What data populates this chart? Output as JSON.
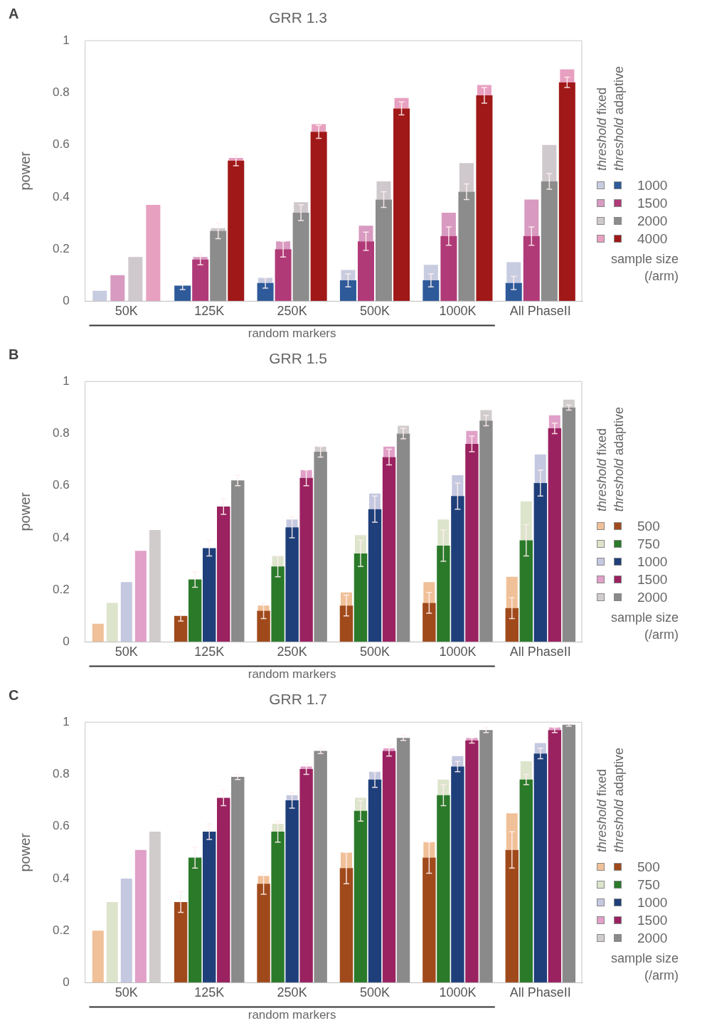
{
  "chart_data": [
    {
      "type": "bar",
      "title": "GRR 1.3",
      "ylabel": "power",
      "legend_title": "sample size (/arm)",
      "annotations": [
        "A",
        "random markers",
        "threshold fixed",
        "threshold adaptive"
      ],
      "categories": [
        "50K",
        "125K",
        "250K",
        "500K",
        "1000K",
        "All PhaseII"
      ],
      "ylim": [
        0,
        1
      ],
      "yticks": [
        0,
        0.2,
        0.4,
        0.6,
        0.8,
        1
      ],
      "grid": false,
      "legend": "right",
      "series": [
        {
          "name": "1000",
          "color": "#2e5a9a",
          "values": [
            null,
            0.06,
            0.07,
            0.08,
            0.08,
            0.07
          ],
          "errors": [
            null,
            0.015,
            0.02,
            0.025,
            0.025,
            0.025
          ]
        },
        {
          "color": "#c8cce0",
          "values": [
            0.04,
            null,
            0.02,
            0.04,
            0.06,
            0.08
          ],
          "base": [
            0,
            null,
            0.07,
            0.08,
            0.08,
            0.07
          ]
        },
        {
          "name": "1500",
          "color": "#b03a78",
          "values": [
            null,
            0.16,
            0.2,
            0.23,
            0.25,
            0.25
          ],
          "errors": [
            null,
            0.02,
            0.03,
            0.035,
            0.035,
            0.035
          ]
        },
        {
          "color": "#d89ac0",
          "values": [
            0.1,
            0.01,
            0.03,
            0.06,
            0.09,
            0.14
          ],
          "base": [
            0,
            0.16,
            0.2,
            0.23,
            0.25,
            0.25
          ]
        },
        {
          "name": "2000",
          "color": "#8c8c8c",
          "values": [
            null,
            0.27,
            0.34,
            0.39,
            0.42,
            0.46
          ],
          "errors": [
            null,
            0.03,
            0.03,
            0.03,
            0.03,
            0.03
          ]
        },
        {
          "color": "#cfc8cc",
          "values": [
            0.17,
            0.01,
            0.04,
            0.07,
            0.11,
            0.14
          ],
          "base": [
            0,
            0.27,
            0.34,
            0.39,
            0.42,
            0.46
          ]
        },
        {
          "name": "4000",
          "color": "#a01818",
          "values": [
            null,
            0.54,
            0.65,
            0.74,
            0.79,
            0.84
          ],
          "errors": [
            null,
            0.02,
            0.025,
            0.025,
            0.03,
            0.02
          ]
        },
        {
          "color": "#e8a0c0",
          "values": [
            0.37,
            0.01,
            0.03,
            0.04,
            0.04,
            0.05
          ],
          "base": [
            0,
            0.54,
            0.65,
            0.74,
            0.79,
            0.84
          ]
        }
      ]
    },
    {
      "type": "bar",
      "title": "GRR 1.5",
      "ylabel": "power",
      "legend_title": "sample size (/arm)",
      "annotations": [
        "B",
        "random markers",
        "threshold fixed",
        "threshold adaptive"
      ],
      "categories": [
        "50K",
        "125K",
        "250K",
        "500K",
        "1000K",
        "All PhaseII"
      ],
      "ylim": [
        0,
        1
      ],
      "yticks": [
        0,
        0.2,
        0.4,
        0.6,
        0.8,
        1
      ],
      "grid": false,
      "legend": "right",
      "series": [
        {
          "name": "500",
          "color": "#a04a1c",
          "values": [
            null,
            0.1,
            0.12,
            0.14,
            0.15,
            0.13
          ],
          "errors": [
            null,
            0.02,
            0.03,
            0.04,
            0.04,
            0.04
          ]
        },
        {
          "color": "#f0c098",
          "values": [
            0.07,
            null,
            0.02,
            0.05,
            0.08,
            0.12
          ],
          "base": [
            0,
            null,
            0.12,
            0.14,
            0.15,
            0.13
          ]
        },
        {
          "name": "750",
          "color": "#2a7a2a",
          "values": [
            null,
            0.24,
            0.29,
            0.34,
            0.37,
            0.39
          ],
          "errors": [
            null,
            0.03,
            0.04,
            0.05,
            0.06,
            0.06
          ]
        },
        {
          "color": "#dde4cc",
          "values": [
            0.15,
            null,
            0.04,
            0.07,
            0.1,
            0.15
          ],
          "base": [
            0,
            null,
            0.29,
            0.34,
            0.37,
            0.39
          ]
        },
        {
          "name": "1000",
          "color": "#1e3f7a",
          "values": [
            null,
            0.36,
            0.44,
            0.51,
            0.56,
            0.61
          ],
          "errors": [
            null,
            0.03,
            0.04,
            0.05,
            0.05,
            0.05
          ]
        },
        {
          "color": "#c4c8e0",
          "values": [
            0.23,
            null,
            0.03,
            0.06,
            0.08,
            0.11
          ],
          "base": [
            0,
            null,
            0.44,
            0.51,
            0.56,
            0.61
          ]
        },
        {
          "name": "1500",
          "color": "#9a2260",
          "values": [
            null,
            0.52,
            0.63,
            0.71,
            0.76,
            0.82
          ],
          "errors": [
            null,
            0.03,
            0.03,
            0.03,
            0.03,
            0.02
          ]
        },
        {
          "color": "#e0a0c8",
          "values": [
            0.35,
            null,
            0.03,
            0.04,
            0.05,
            0.05
          ],
          "base": [
            0,
            null,
            0.63,
            0.71,
            0.76,
            0.82
          ]
        },
        {
          "name": "2000",
          "color": "#8a8a8a",
          "values": [
            null,
            0.62,
            0.73,
            0.8,
            0.85,
            0.9
          ],
          "errors": [
            null,
            0.02,
            0.02,
            0.02,
            0.02,
            0.01
          ]
        },
        {
          "color": "#d0cccc",
          "values": [
            0.43,
            null,
            0.02,
            0.03,
            0.04,
            0.03
          ],
          "base": [
            0,
            null,
            0.73,
            0.8,
            0.85,
            0.9
          ]
        }
      ]
    },
    {
      "type": "bar",
      "title": "GRR 1.7",
      "ylabel": "power",
      "legend_title": "sample size (/arm)",
      "annotations": [
        "C",
        "random markers",
        "threshold fixed",
        "threshold adaptive"
      ],
      "categories": [
        "50K",
        "125K",
        "250K",
        "500K",
        "1000K",
        "All PhaseII"
      ],
      "ylim": [
        0,
        1
      ],
      "yticks": [
        0,
        0.2,
        0.4,
        0.6,
        0.8,
        1
      ],
      "grid": false,
      "legend": "right",
      "series": [
        {
          "name": "500",
          "color": "#a04a1c",
          "values": [
            null,
            0.31,
            0.38,
            0.44,
            0.48,
            0.51
          ],
          "errors": [
            null,
            0.04,
            0.04,
            0.06,
            0.06,
            0.07
          ]
        },
        {
          "color": "#f0c098",
          "values": [
            0.2,
            null,
            0.03,
            0.06,
            0.06,
            0.14
          ],
          "base": [
            0,
            null,
            0.38,
            0.44,
            0.48,
            0.51
          ]
        },
        {
          "name": "750",
          "color": "#2a7a2a",
          "values": [
            null,
            0.48,
            0.58,
            0.66,
            0.72,
            0.78
          ],
          "errors": [
            null,
            0.04,
            0.04,
            0.04,
            0.04,
            0.02
          ]
        },
        {
          "color": "#dde4cc",
          "values": [
            0.31,
            null,
            0.03,
            0.05,
            0.06,
            0.07
          ],
          "base": [
            0,
            null,
            0.58,
            0.66,
            0.72,
            0.78
          ]
        },
        {
          "name": "1000",
          "color": "#1e3f7a",
          "values": [
            null,
            0.58,
            0.7,
            0.78,
            0.83,
            0.88
          ],
          "errors": [
            null,
            0.03,
            0.03,
            0.03,
            0.02,
            0.02
          ]
        },
        {
          "color": "#c4c8e0",
          "values": [
            0.4,
            null,
            0.02,
            0.03,
            0.04,
            0.04
          ],
          "base": [
            0,
            null,
            0.7,
            0.78,
            0.83,
            0.88
          ]
        },
        {
          "name": "1500",
          "color": "#9a2260",
          "values": [
            null,
            0.71,
            0.82,
            0.89,
            0.93,
            0.97
          ],
          "errors": [
            null,
            0.03,
            0.02,
            0.02,
            0.01,
            0.01
          ]
        },
        {
          "color": "#e0a0c8",
          "values": [
            0.51,
            null,
            0.01,
            0.01,
            0.01,
            0.01
          ],
          "base": [
            0,
            null,
            0.82,
            0.89,
            0.93,
            0.97
          ]
        },
        {
          "name": "2000",
          "color": "#8a8a8a",
          "values": [
            null,
            0.79,
            0.89,
            0.94,
            0.97,
            0.99
          ],
          "errors": [
            null,
            0.01,
            0.01,
            0.01,
            0.01,
            0.005
          ]
        },
        {
          "color": "#d0cccc",
          "values": [
            0.58,
            null,
            null,
            null,
            null,
            null
          ],
          "base": [
            0,
            null,
            null,
            null,
            null,
            null
          ]
        }
      ]
    }
  ]
}
